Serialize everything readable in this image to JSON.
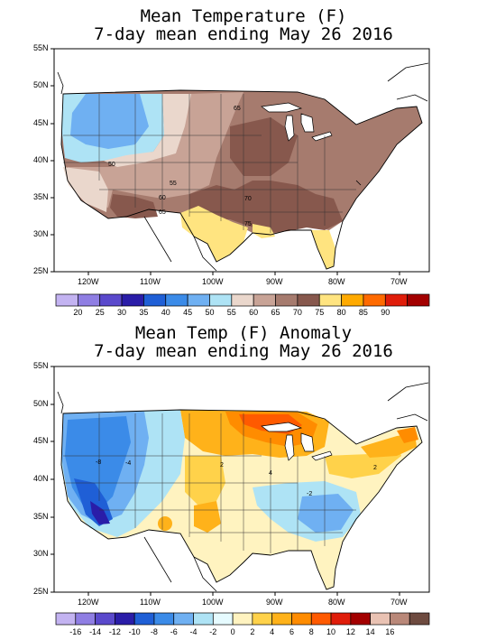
{
  "top": {
    "title_line1": "Mean Temperature (F)",
    "title_line2": "7-day mean ending May 26 2016",
    "lat_labels": [
      "55N",
      "50N",
      "45N",
      "40N",
      "35N",
      "30N",
      "25N"
    ],
    "lon_labels": [
      "120W",
      "110W",
      "100W",
      "90W",
      "80W",
      "70W"
    ],
    "contour_labels": [
      "65",
      "50",
      "55",
      "60",
      "70",
      "65",
      "75"
    ],
    "colorbar": {
      "labels": [
        "20",
        "25",
        "30",
        "35",
        "40",
        "45",
        "50",
        "55",
        "60",
        "65",
        "70",
        "75",
        "80",
        "85",
        "90"
      ],
      "colors": [
        "#c3b3f1",
        "#8f7ee3",
        "#5a49cc",
        "#2a1da8",
        "#1f5fd6",
        "#3b8be8",
        "#6fb0f2",
        "#aee3f5",
        "#ead7cc",
        "#c8a396",
        "#a67b6e",
        "#87584d",
        "#ffe480",
        "#ffaa00",
        "#ff6a00",
        "#e01d0a",
        "#a30000"
      ]
    }
  },
  "bottom": {
    "title_line1": "Mean Temp (F) Anomaly",
    "title_line2": "7-day mean ending May 26 2016",
    "lat_labels": [
      "55N",
      "50N",
      "45N",
      "40N",
      "35N",
      "30N",
      "25N"
    ],
    "lon_labels": [
      "120W",
      "110W",
      "100W",
      "90W",
      "80W",
      "70W"
    ],
    "contour_labels": [
      "-8",
      "-4",
      "2",
      "4",
      "-2",
      "2"
    ],
    "colorbar": {
      "labels": [
        "-16",
        "-14",
        "-12",
        "-10",
        "-8",
        "-6",
        "-4",
        "-2",
        "0",
        "2",
        "4",
        "6",
        "8",
        "10",
        "12",
        "14",
        "16"
      ],
      "colors": [
        "#c3b3f1",
        "#8f7ee3",
        "#5a49cc",
        "#2a1da8",
        "#1f5fd6",
        "#3b8be8",
        "#6fb0f2",
        "#aee3f5",
        "#e6fbff",
        "#fff3c0",
        "#ffd24a",
        "#ffb21a",
        "#ff8c00",
        "#ff5a00",
        "#e01d0a",
        "#a30000",
        "#e9c2b3",
        "#b98879",
        "#6e4b40"
      ]
    }
  }
}
